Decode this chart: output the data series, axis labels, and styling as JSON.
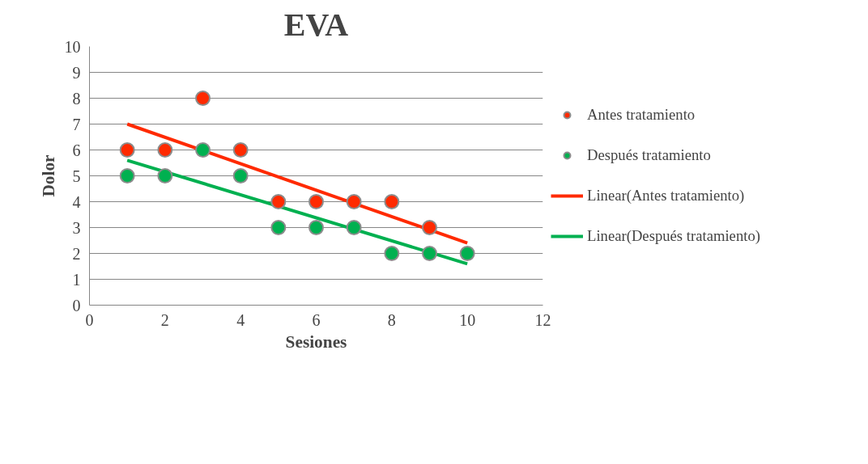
{
  "chart_data": {
    "type": "scatter",
    "title": "EVA",
    "xlabel": "Sesiones",
    "ylabel": "Dolor",
    "x": [
      1,
      2,
      3,
      4,
      5,
      6,
      7,
      8,
      9,
      10
    ],
    "series": [
      {
        "name": "Antes tratamiento",
        "color": "#ff2a00",
        "marker": "circle",
        "values": [
          6,
          6,
          8,
          6,
          4,
          4,
          4,
          4,
          3,
          null
        ]
      },
      {
        "name": "Después tratamiento",
        "color": "#00b050",
        "marker": "circle",
        "values": [
          5,
          5,
          6,
          5,
          3,
          3,
          3,
          2,
          2,
          2
        ]
      },
      {
        "name": "Linear(Antes tratamiento)",
        "type": "line",
        "color": "#ff2a00",
        "values": [
          7.0,
          null,
          null,
          null,
          null,
          null,
          null,
          null,
          null,
          2.4
        ]
      },
      {
        "name": "Linear(Después tratamiento)",
        "type": "line",
        "color": "#00b050",
        "values": [
          5.6,
          null,
          null,
          null,
          null,
          null,
          null,
          null,
          null,
          1.6
        ]
      }
    ],
    "xlim": [
      0,
      12
    ],
    "xticks": [
      0,
      2,
      4,
      6,
      8,
      10,
      12
    ],
    "ylim": [
      0,
      10
    ],
    "yticks": [
      0,
      1,
      2,
      3,
      4,
      5,
      6,
      7,
      8,
      9,
      10
    ],
    "grid": "y",
    "legend": "right",
    "line_style": "solid"
  }
}
